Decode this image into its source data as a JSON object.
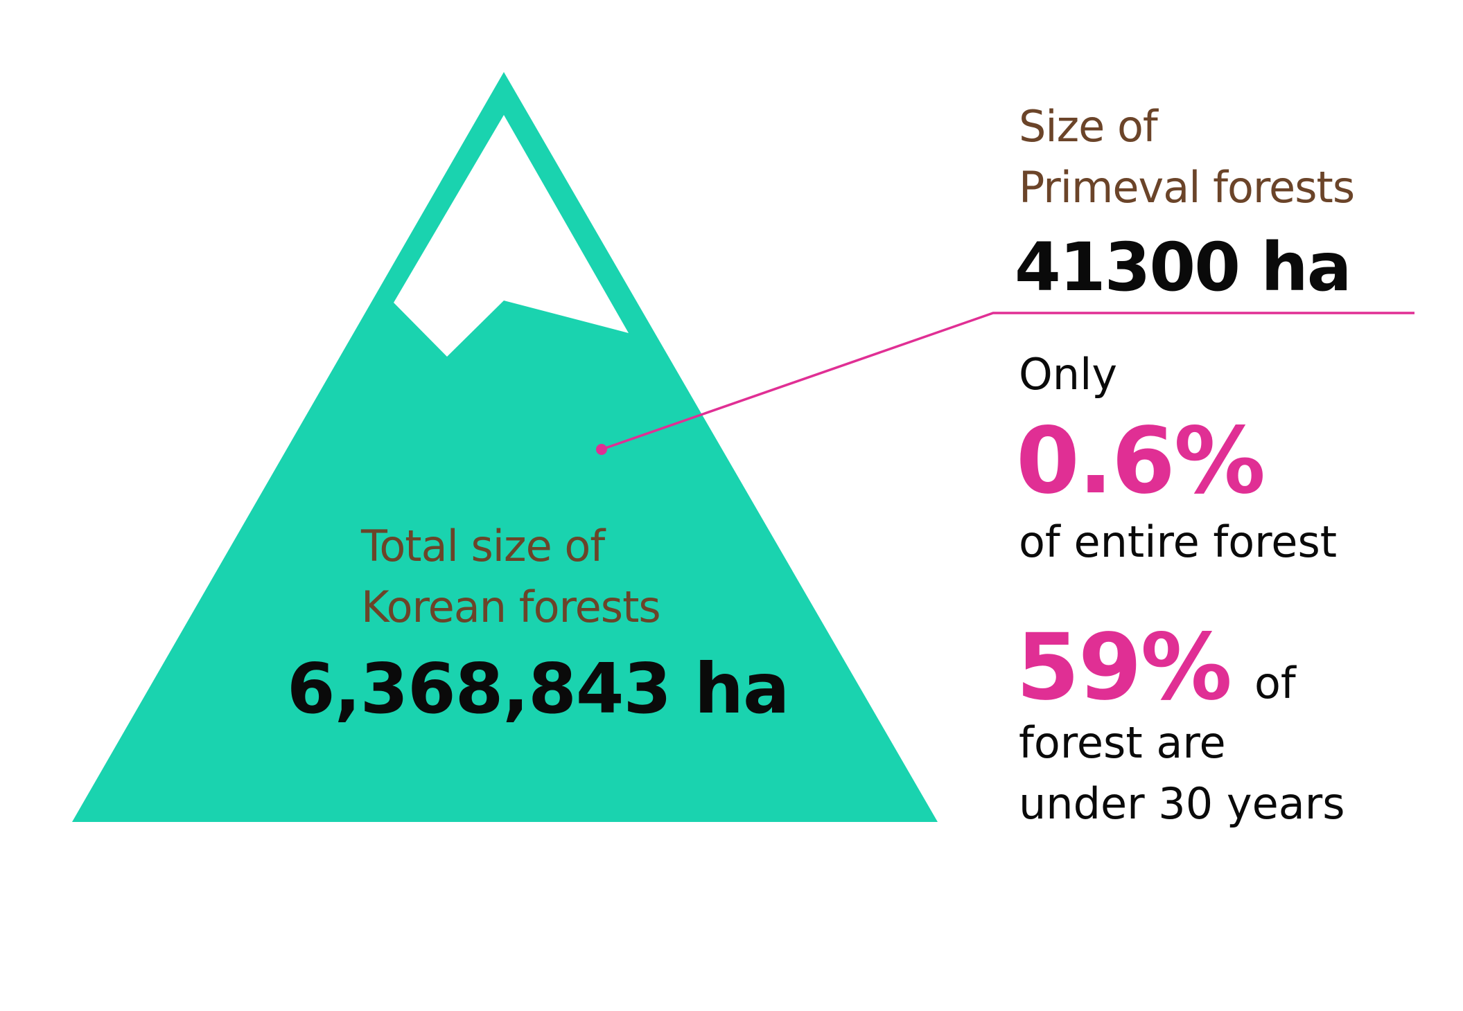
{
  "colors": {
    "mountain": "#1ad3af",
    "accent": "#e02f94",
    "label": "#6b4429",
    "value": "#0a0a0a"
  },
  "total": {
    "label_line1": "Total size of",
    "label_line2": "Korean forests",
    "value": "6,368,843 ha"
  },
  "primeval": {
    "label_line1": "Size of",
    "label_line2": "Primeval forests",
    "value": "41300 ha"
  },
  "share": {
    "prefix": "Only",
    "value": "0.6%",
    "suffix": "of entire forest"
  },
  "young": {
    "value": "59%",
    "of": "of",
    "line1": "forest are",
    "line2": "under 30 years"
  }
}
